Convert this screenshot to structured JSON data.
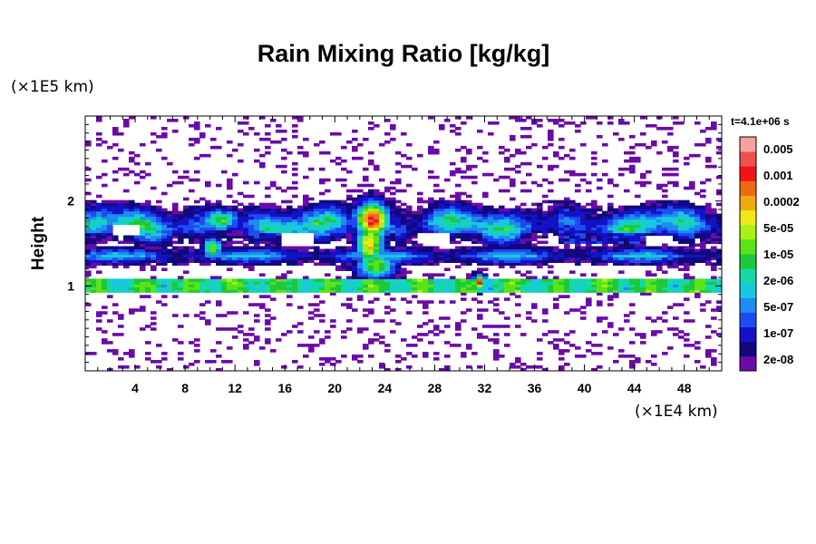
{
  "header": {
    "title": "Rain Mixing Ratio [kg/kg]",
    "y_unit": "(×1E5 km)",
    "x_unit": "(×1E4 km)",
    "time": "t=4.1e+06 s"
  },
  "chart_data": {
    "type": "heatmap",
    "title": "Rain Mixing Ratio [kg/kg]",
    "xlabel": "",
    "ylabel": "Height",
    "xlim": [
      0,
      51
    ],
    "ylim": [
      0,
      3
    ],
    "x_ticks": [
      4,
      8,
      12,
      16,
      20,
      24,
      28,
      32,
      36,
      40,
      44,
      48
    ],
    "y_ticks": [
      1,
      2
    ],
    "colorbar": {
      "labels": [
        "0.005",
        "0.001",
        "0.0002",
        "5e-05",
        "1e-05",
        "2e-06",
        "5e-07",
        "1e-07",
        "2e-08"
      ],
      "levels": [
        {
          "color": "#6a0aa8"
        },
        {
          "color": "#12087c"
        },
        {
          "color": "#1212c8"
        },
        {
          "color": "#1e4cf0"
        },
        {
          "color": "#1e8cf0"
        },
        {
          "color": "#18c8e0"
        },
        {
          "color": "#14d8a8"
        },
        {
          "color": "#1ec83c"
        },
        {
          "color": "#5ae21a"
        },
        {
          "color": "#a8f01a"
        },
        {
          "color": "#f0e814"
        },
        {
          "color": "#f0a814"
        },
        {
          "color": "#f06814"
        },
        {
          "color": "#f01414"
        },
        {
          "color": "#f05050"
        },
        {
          "color": "#f8a0a0"
        }
      ]
    },
    "features": [
      {
        "region": "upper cloud band",
        "x": [
          0,
          51
        ],
        "y": [
          1.4,
          2.0
        ]
      },
      {
        "region": "lower thin layer",
        "x": [
          0,
          51
        ],
        "y": [
          0.95,
          1.07
        ]
      },
      {
        "region": "convective core",
        "x": [
          21.5,
          24.5
        ],
        "y": [
          1.2,
          2.0
        ],
        "max": "0.005"
      },
      {
        "region": "isolated cell",
        "x": [
          30.5,
          32.5
        ],
        "y": [
          1.0,
          1.15
        ],
        "max": "0.001"
      }
    ]
  }
}
